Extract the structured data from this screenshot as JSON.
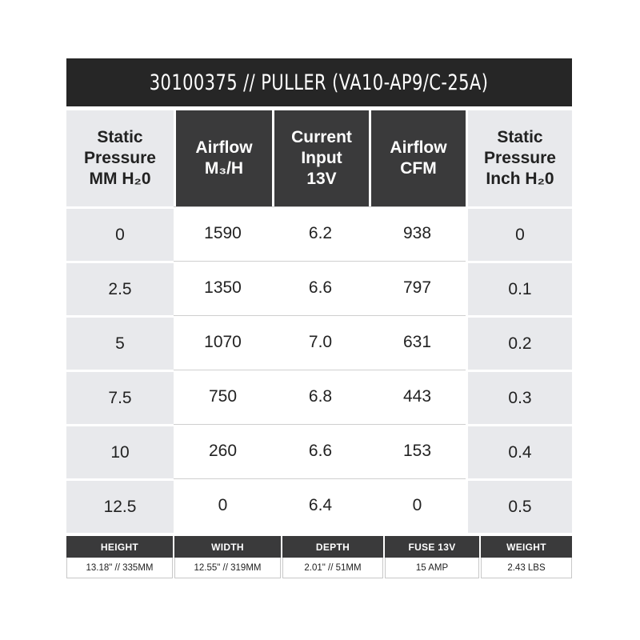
{
  "title": "30100375 // PULLER (VA10-AP9/C-25A)",
  "columns": [
    {
      "label": "Static\nPressure\nMM H₂0",
      "style": "light"
    },
    {
      "label": "Airflow\nM₃/H",
      "style": "dark"
    },
    {
      "label": "Current\nInput\n13V",
      "style": "dark"
    },
    {
      "label": "Airflow\nCFM",
      "style": "dark"
    },
    {
      "label": "Static\nPressure\nInch H₂0",
      "style": "light"
    }
  ],
  "rows": [
    [
      "0",
      "1590",
      "6.2",
      "938",
      "0"
    ],
    [
      "2.5",
      "1350",
      "6.6",
      "797",
      "0.1"
    ],
    [
      "5",
      "1070",
      "7.0",
      "631",
      "0.2"
    ],
    [
      "7.5",
      "750",
      "6.8",
      "443",
      "0.3"
    ],
    [
      "10",
      "260",
      "6.6",
      "153",
      "0.4"
    ],
    [
      "12.5",
      "0",
      "6.4",
      "0",
      "0.5"
    ]
  ],
  "dimensions": {
    "headers": [
      "HEIGHT",
      "WIDTH",
      "DEPTH",
      "FUSE 13V",
      "WEIGHT"
    ],
    "values": [
      "13.18\" // 335MM",
      "12.55\" // 319MM",
      "2.01\" // 51MM",
      "15 AMP",
      "2.43 LBS"
    ]
  },
  "colors": {
    "title_bg": "#262626",
    "dark_header_bg": "#3a3a3b",
    "light_column_bg": "#e8e9ec"
  }
}
